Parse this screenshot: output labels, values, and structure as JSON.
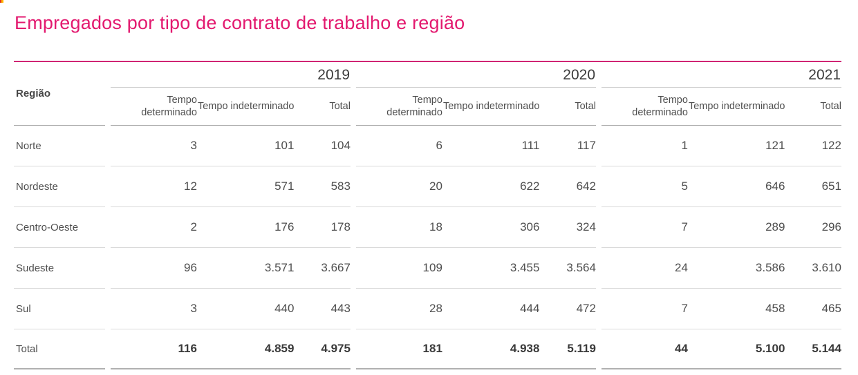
{
  "page": {
    "title": "Empregados por tipo de contrato de trabalho e região",
    "accent_color": "#e3196f",
    "table_top_border_color": "#d02573"
  },
  "table": {
    "region_header": "Região",
    "years": [
      "2019",
      "2020",
      "2021"
    ],
    "col_headers": [
      "Tempo determinado",
      "Tempo indeterminado",
      "Total"
    ],
    "rows": [
      {
        "region": "Norte",
        "is_total": false,
        "values": [
          [
            "3",
            "101",
            "104"
          ],
          [
            "6",
            "111",
            "117"
          ],
          [
            "1",
            "121",
            "122"
          ]
        ]
      },
      {
        "region": "Nordeste",
        "is_total": false,
        "values": [
          [
            "12",
            "571",
            "583"
          ],
          [
            "20",
            "622",
            "642"
          ],
          [
            "5",
            "646",
            "651"
          ]
        ]
      },
      {
        "region": "Centro-Oeste",
        "is_total": false,
        "values": [
          [
            "2",
            "176",
            "178"
          ],
          [
            "18",
            "306",
            "324"
          ],
          [
            "7",
            "289",
            "296"
          ]
        ]
      },
      {
        "region": "Sudeste",
        "is_total": false,
        "values": [
          [
            "96",
            "3.571",
            "3.667"
          ],
          [
            "109",
            "3.455",
            "3.564"
          ],
          [
            "24",
            "3.586",
            "3.610"
          ]
        ]
      },
      {
        "region": "Sul",
        "is_total": false,
        "values": [
          [
            "3",
            "440",
            "443"
          ],
          [
            "28",
            "444",
            "472"
          ],
          [
            "7",
            "458",
            "465"
          ]
        ]
      },
      {
        "region": "Total",
        "is_total": true,
        "values": [
          [
            "116",
            "4.859",
            "4.975"
          ],
          [
            "181",
            "4.938",
            "5.119"
          ],
          [
            "44",
            "5.100",
            "5.144"
          ]
        ]
      }
    ]
  },
  "chart_data": {
    "type": "table",
    "title": "Empregados por tipo de contrato de trabalho e região",
    "row_label_header": "Região",
    "column_groups": [
      "2019",
      "2020",
      "2021"
    ],
    "columns_per_group": [
      "Tempo determinado",
      "Tempo indeterminado",
      "Total"
    ],
    "rows": [
      {
        "region": "Norte",
        "y2019": [
          3,
          101,
          104
        ],
        "y2020": [
          6,
          111,
          117
        ],
        "y2021": [
          1,
          121,
          122
        ]
      },
      {
        "region": "Nordeste",
        "y2019": [
          12,
          571,
          583
        ],
        "y2020": [
          20,
          622,
          642
        ],
        "y2021": [
          5,
          646,
          651
        ]
      },
      {
        "region": "Centro-Oeste",
        "y2019": [
          2,
          176,
          178
        ],
        "y2020": [
          18,
          306,
          324
        ],
        "y2021": [
          7,
          289,
          296
        ]
      },
      {
        "region": "Sudeste",
        "y2019": [
          96,
          3571,
          3667
        ],
        "y2020": [
          109,
          3455,
          3564
        ],
        "y2021": [
          24,
          3586,
          3610
        ]
      },
      {
        "region": "Sul",
        "y2019": [
          3,
          440,
          443
        ],
        "y2020": [
          28,
          444,
          472
        ],
        "y2021": [
          7,
          458,
          465
        ]
      },
      {
        "region": "Total",
        "y2019": [
          116,
          4859,
          4975
        ],
        "y2020": [
          181,
          4938,
          5119
        ],
        "y2021": [
          44,
          5100,
          5144
        ]
      }
    ],
    "number_format": "pt-BR (dot as thousands separator)",
    "layout": "three year column-groups separated by gaps; numeric columns right-aligned; total row bold"
  }
}
